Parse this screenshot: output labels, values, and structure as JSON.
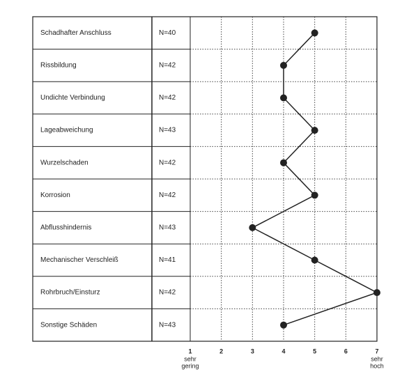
{
  "chart_data": {
    "type": "line",
    "categories": [
      "Schadhafter Anschluss",
      "Rissbildung",
      "Undichte Verbindung",
      "Lageabweichung",
      "Wurzelschaden",
      "Korrosion",
      "Abflusshindernis",
      "Mechanischer Verschleiß",
      "Rohrbruch/Einsturz",
      "Sonstige Schäden"
    ],
    "n_labels": [
      "N=40",
      "N=42",
      "N=42",
      "N=43",
      "N=42",
      "N=42",
      "N=43",
      "N=41",
      "N=42",
      "N=43"
    ],
    "series": [
      {
        "color": "#222222",
        "values": [
          5,
          4,
          4,
          5,
          4,
          5,
          3,
          5,
          7,
          4
        ]
      }
    ],
    "xlim": [
      1,
      7
    ],
    "xticks": [
      1,
      2,
      3,
      4,
      5,
      6,
      7
    ],
    "grid": true,
    "low_anchor": [
      "sehr",
      "gering"
    ],
    "high_anchor": [
      "sehr",
      "hoch"
    ]
  }
}
